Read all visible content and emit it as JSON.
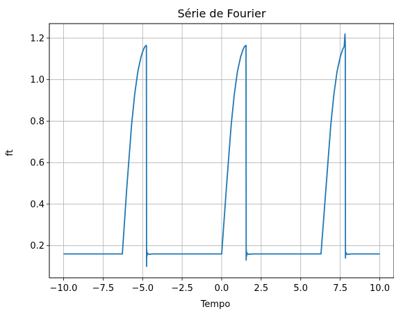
{
  "chart_data": {
    "type": "line",
    "title": "Série de Fourier",
    "xlabel": "Tempo",
    "ylabel": "ft",
    "xlim": [
      -10.9,
      10.9
    ],
    "ylim": [
      0.045,
      1.27
    ],
    "grid": true,
    "xticks": [
      -10,
      -7.5,
      -5,
      -2.5,
      0,
      2.5,
      5,
      7.5,
      10
    ],
    "xtick_labels": [
      "−10.0",
      "−7.5",
      "−5.0",
      "−2.5",
      "0.0",
      "2.5",
      "5.0",
      "7.5",
      "10.0"
    ],
    "yticks": [
      0.2,
      0.4,
      0.6,
      0.8,
      1.0,
      1.2
    ],
    "ytick_labels": [
      "0.2",
      "0.4",
      "0.6",
      "0.8",
      "1.0",
      "1.2"
    ],
    "series": [
      {
        "color": "#1f77b4",
        "x": [
          -10.0,
          -6.283,
          -6.0,
          -5.7,
          -5.5,
          -5.3,
          -5.1,
          -4.95,
          -4.85,
          -4.76,
          -4.75,
          -4.74,
          -4.72,
          -4.7,
          -4.6,
          -4.4,
          0.0,
          0.3,
          0.6,
          0.8,
          1.0,
          1.2,
          1.35,
          1.45,
          1.54,
          1.55,
          1.56,
          1.58,
          1.6,
          1.7,
          1.9,
          6.283,
          6.6,
          6.9,
          7.1,
          7.3,
          7.5,
          7.65,
          7.75,
          7.8,
          7.82,
          7.83,
          7.84,
          7.86,
          7.88,
          7.9,
          8.0,
          8.2,
          10.0
        ],
        "y": [
          0.16,
          0.16,
          0.48,
          0.78,
          0.93,
          1.04,
          1.11,
          1.145,
          1.16,
          1.165,
          0.1,
          0.18,
          0.15,
          0.165,
          0.158,
          0.16,
          0.16,
          0.48,
          0.78,
          0.93,
          1.04,
          1.11,
          1.145,
          1.16,
          1.165,
          0.13,
          0.18,
          0.15,
          0.165,
          0.158,
          0.16,
          0.16,
          0.48,
          0.78,
          0.93,
          1.04,
          1.11,
          1.145,
          1.16,
          1.22,
          1.17,
          0.14,
          0.17,
          0.155,
          0.165,
          0.16,
          0.158,
          0.16,
          0.16
        ]
      }
    ]
  }
}
